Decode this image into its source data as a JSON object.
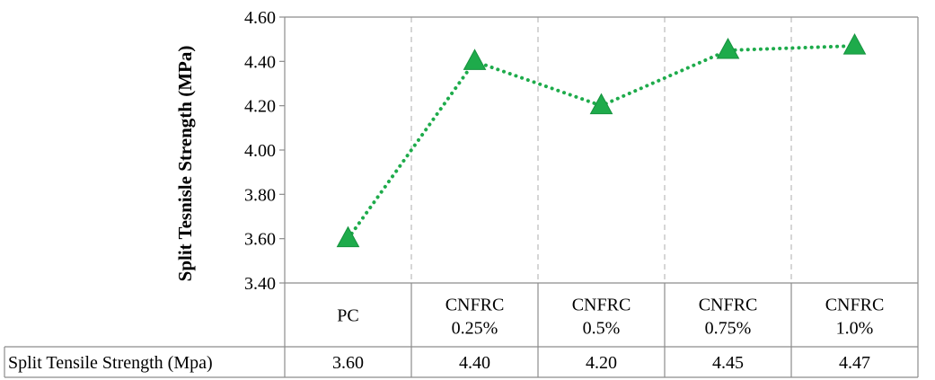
{
  "chart_data": {
    "type": "line",
    "title": "",
    "xlabel": "",
    "ylabel": "Split Tesnisle Strength (MPa)",
    "ylim": [
      3.4,
      4.6
    ],
    "yticks": [
      "3.40",
      "3.60",
      "3.80",
      "4.00",
      "4.20",
      "4.40",
      "4.60"
    ],
    "categories": [
      [
        "PC"
      ],
      [
        "CNFRC",
        "0.25%"
      ],
      [
        "CNFRC",
        "0.5%"
      ],
      [
        "CNFRC",
        "0.75%"
      ],
      [
        "CNFRC",
        "1.0%"
      ]
    ],
    "series": [
      {
        "values": [
          3.6,
          4.4,
          4.2,
          4.45,
          4.47
        ],
        "color": "#1eab4b",
        "marker": "triangle",
        "line_style": "dotted"
      }
    ],
    "grid": "vertical-dashed",
    "table": {
      "row_label": "Split Tensile Strength (Mpa)",
      "cells": [
        "3.60",
        "4.40",
        "4.20",
        "4.45",
        "4.47"
      ]
    }
  }
}
